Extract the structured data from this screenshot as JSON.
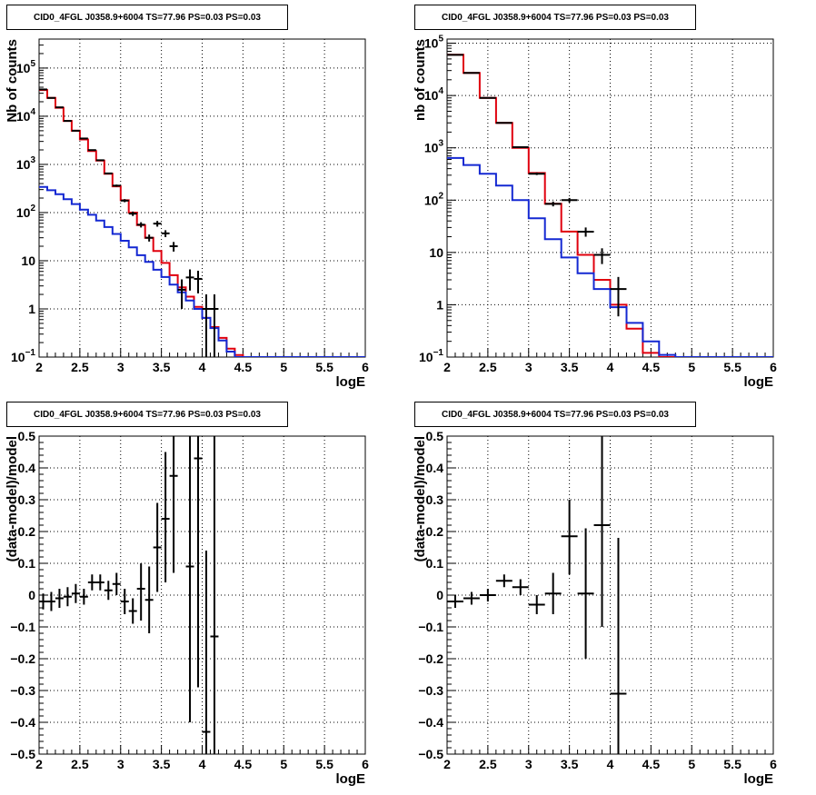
{
  "colors": {
    "data": "#000000",
    "total": "#e0000e",
    "component": "#1428d2",
    "grid": "#000000"
  },
  "chart_data": [
    {
      "type": "line",
      "title": "CID0_4FGL J0358.9+6004 TS=77.96 PS=0.03 PS=0.03",
      "xlabel": "logE",
      "ylabel": "Nb of counts",
      "ylog": true,
      "xlim": [
        2,
        6
      ],
      "ylim": [
        0.1,
        400000
      ],
      "grid": true,
      "x_ticks": [
        "2",
        "2.5",
        "3",
        "3.5",
        "4",
        "4.5",
        "5",
        "5.5",
        "6"
      ],
      "y_ticks": [
        {
          "v": 0.1,
          "base": "10",
          "exp": "−1"
        },
        {
          "v": 1,
          "base": "1",
          "exp": ""
        },
        {
          "v": 10,
          "base": "10",
          "exp": ""
        },
        {
          "v": 100,
          "base": "10",
          "exp": "2"
        },
        {
          "v": 1000,
          "base": "10",
          "exp": "3"
        },
        {
          "v": 10000,
          "base": "10",
          "exp": "4"
        },
        {
          "v": 100000,
          "base": "10",
          "exp": "5"
        }
      ],
      "series": [
        {
          "role": "total",
          "style": "step",
          "bin_start": 2.0,
          "bin_width": 0.1,
          "values": [
            35000,
            24000,
            15000,
            8000,
            5000,
            3300,
            1900,
            1200,
            640,
            350,
            180,
            100,
            55,
            30,
            16,
            9,
            5,
            2.8,
            1.8,
            1.1,
            0.65,
            0.42,
            0.25,
            0.15,
            0.11,
            0.1,
            0.1,
            0.1,
            0.1,
            0.1,
            0.1,
            0.1,
            0.1,
            0.1,
            0.1,
            0.1,
            0.1,
            0.1,
            0.1,
            0.1
          ]
        },
        {
          "role": "component",
          "style": "step",
          "bin_start": 2.0,
          "bin_width": 0.1,
          "values": [
            340,
            290,
            240,
            190,
            150,
            115,
            90,
            68,
            50,
            36,
            26,
            19,
            13,
            9.5,
            6.5,
            4.6,
            3.2,
            2.2,
            1.5,
            1.0,
            0.65,
            0.4,
            0.22,
            0.13,
            0.1,
            0.1,
            0.1,
            0.1,
            0.1,
            0.1,
            0.1,
            0.1,
            0.1,
            0.1,
            0.1,
            0.1,
            0.1,
            0.1,
            0.1,
            0.1
          ]
        },
        {
          "role": "data",
          "style": "points",
          "points": [
            {
              "x": 2.05,
              "y": 36000,
              "lo": 35800,
              "hi": 36200
            },
            {
              "x": 2.15,
              "y": 24000,
              "lo": 23850,
              "hi": 24150
            },
            {
              "x": 2.25,
              "y": 15300,
              "lo": 15180,
              "hi": 15420
            },
            {
              "x": 2.35,
              "y": 8000,
              "lo": 7910,
              "hi": 8090
            },
            {
              "x": 2.45,
              "y": 5000,
              "lo": 4930,
              "hi": 5070
            },
            {
              "x": 2.55,
              "y": 3450,
              "lo": 3390,
              "hi": 3510
            },
            {
              "x": 2.65,
              "y": 1980,
              "lo": 1935,
              "hi": 2025
            },
            {
              "x": 2.75,
              "y": 1220,
              "lo": 1185,
              "hi": 1255
            },
            {
              "x": 2.85,
              "y": 650,
              "lo": 625,
              "hi": 675
            },
            {
              "x": 2.95,
              "y": 362,
              "lo": 343,
              "hi": 381
            },
            {
              "x": 3.05,
              "y": 177,
              "lo": 164,
              "hi": 190
            },
            {
              "x": 3.15,
              "y": 95,
              "lo": 85,
              "hi": 105
            },
            {
              "x": 3.25,
              "y": 56,
              "lo": 49,
              "hi": 63
            },
            {
              "x": 3.35,
              "y": 30,
              "lo": 25,
              "hi": 35
            },
            {
              "x": 3.45,
              "y": 59,
              "lo": 51,
              "hi": 67
            },
            {
              "x": 3.55,
              "y": 37,
              "lo": 31,
              "hi": 43
            },
            {
              "x": 3.65,
              "y": 20,
              "lo": 15.5,
              "hi": 24.5
            },
            {
              "x": 3.75,
              "y": 2.5,
              "lo": 1,
              "hi": 4.1
            },
            {
              "x": 3.85,
              "y": 4.5,
              "lo": 2.4,
              "hi": 6.6
            },
            {
              "x": 3.95,
              "y": 4.2,
              "lo": 2.1,
              "hi": 6.2
            },
            {
              "x": 4.05,
              "y": 1.0,
              "lo": 0.1,
              "hi": 2.0
            },
            {
              "x": 4.15,
              "y": 1.0,
              "lo": 0.1,
              "hi": 2.0
            }
          ]
        }
      ]
    },
    {
      "type": "line",
      "title": "CID0_4FGL J0358.9+6004 TS=77.96 PS=0.03 PS=0.03",
      "xlabel": "logE",
      "ylabel": "nb of counts",
      "ylog": true,
      "xlim": [
        2,
        6
      ],
      "ylim": [
        0.1,
        120000
      ],
      "grid": true,
      "x_ticks": [
        "2",
        "2.5",
        "3",
        "3.5",
        "4",
        "4.5",
        "5",
        "5.5",
        "6"
      ],
      "y_ticks": [
        {
          "v": 0.1,
          "base": "10",
          "exp": "−1"
        },
        {
          "v": 1,
          "base": "1",
          "exp": ""
        },
        {
          "v": 10,
          "base": "10",
          "exp": ""
        },
        {
          "v": 100,
          "base": "10",
          "exp": "2"
        },
        {
          "v": 1000,
          "base": "10",
          "exp": "3"
        },
        {
          "v": 10000,
          "base": "10",
          "exp": "4"
        },
        {
          "v": 100000,
          "base": "10",
          "exp": "5"
        }
      ],
      "series": [
        {
          "role": "total",
          "style": "step",
          "bin_start": 2.0,
          "bin_width": 0.2,
          "values": [
            60000,
            27000,
            9000,
            3000,
            1000,
            330,
            85,
            25,
            9,
            3,
            1,
            0.35,
            0.12,
            0.1,
            0.1,
            0.1,
            0.1,
            0.1,
            0.1,
            0.1
          ]
        },
        {
          "role": "component",
          "style": "step",
          "bin_start": 2.0,
          "bin_width": 0.2,
          "values": [
            640,
            470,
            320,
            190,
            100,
            45,
            18,
            8,
            4,
            2,
            0.9,
            0.45,
            0.2,
            0.11,
            0.1,
            0.1,
            0.1,
            0.1,
            0.1,
            0.1
          ]
        },
        {
          "role": "data",
          "style": "points",
          "points": [
            {
              "x": 2.1,
              "y": 60000,
              "lo": 59750,
              "hi": 60250
            },
            {
              "x": 2.3,
              "y": 27000,
              "lo": 26830,
              "hi": 27170
            },
            {
              "x": 2.5,
              "y": 9000,
              "lo": 8900,
              "hi": 9100
            },
            {
              "x": 2.7,
              "y": 3000,
              "lo": 2945,
              "hi": 3055
            },
            {
              "x": 2.9,
              "y": 1030,
              "lo": 998,
              "hi": 1062
            },
            {
              "x": 3.1,
              "y": 320,
              "lo": 302,
              "hi": 338
            },
            {
              "x": 3.3,
              "y": 85,
              "lo": 76,
              "hi": 94
            },
            {
              "x": 3.5,
              "y": 100,
              "lo": 90,
              "hi": 110
            },
            {
              "x": 3.7,
              "y": 25,
              "lo": 20,
              "hi": 30
            },
            {
              "x": 3.9,
              "y": 9,
              "lo": 6,
              "hi": 12
            },
            {
              "x": 4.1,
              "y": 2,
              "lo": 0.6,
              "hi": 3.4
            }
          ]
        }
      ]
    },
    {
      "type": "scatter",
      "title": "CID0_4FGL J0358.9+6004 TS=77.96 PS=0.03 PS=0.03",
      "xlabel": "logE",
      "ylabel": "(data-model)/model",
      "ylog": false,
      "xlim": [
        2,
        6
      ],
      "ylim": [
        -0.5,
        0.5
      ],
      "grid": true,
      "x_ticks": [
        "2",
        "2.5",
        "3",
        "3.5",
        "4",
        "4.5",
        "5",
        "5.5",
        "6"
      ],
      "y_ticks": [
        "−0.5",
        "−0.4",
        "−0.3",
        "−0.2",
        "−0.1",
        "0",
        "0.1",
        "0.2",
        "0.3",
        "0.4",
        "0.5"
      ],
      "series": [
        {
          "role": "data",
          "style": "points",
          "half_width": 0.05,
          "points": [
            {
              "x": 2.05,
              "y": -0.02,
              "lo": -0.045,
              "hi": 0.005
            },
            {
              "x": 2.15,
              "y": -0.02,
              "lo": -0.05,
              "hi": 0.01
            },
            {
              "x": 2.25,
              "y": -0.01,
              "lo": -0.04,
              "hi": 0.02
            },
            {
              "x": 2.35,
              "y": -0.005,
              "lo": -0.035,
              "hi": 0.025
            },
            {
              "x": 2.45,
              "y": 0.005,
              "lo": -0.025,
              "hi": 0.035
            },
            {
              "x": 2.55,
              "y": -0.005,
              "lo": -0.03,
              "hi": 0.02
            },
            {
              "x": 2.65,
              "y": 0.04,
              "lo": 0.015,
              "hi": 0.065
            },
            {
              "x": 2.75,
              "y": 0.04,
              "lo": 0.015,
              "hi": 0.065
            },
            {
              "x": 2.85,
              "y": 0.015,
              "lo": -0.015,
              "hi": 0.045
            },
            {
              "x": 2.95,
              "y": 0.035,
              "lo": 0.0,
              "hi": 0.07
            },
            {
              "x": 3.05,
              "y": -0.02,
              "lo": -0.06,
              "hi": 0.02
            },
            {
              "x": 3.15,
              "y": -0.05,
              "lo": -0.09,
              "hi": -0.01
            },
            {
              "x": 3.25,
              "y": 0.02,
              "lo": -0.08,
              "hi": 0.1
            },
            {
              "x": 3.35,
              "y": -0.015,
              "lo": -0.12,
              "hi": 0.09
            },
            {
              "x": 3.45,
              "y": 0.15,
              "lo": 0.01,
              "hi": 0.29
            },
            {
              "x": 3.55,
              "y": 0.24,
              "lo": 0.04,
              "hi": 0.45
            },
            {
              "x": 3.65,
              "y": 0.375,
              "lo": 0.07,
              "hi": 0.5
            },
            {
              "x": 3.85,
              "y": 0.09,
              "lo": -0.4,
              "hi": 0.5
            },
            {
              "x": 3.95,
              "y": 0.43,
              "lo": -0.29,
              "hi": 0.5
            },
            {
              "x": 4.05,
              "y": -0.43,
              "lo": -0.5,
              "hi": 0.14
            },
            {
              "x": 4.15,
              "y": -0.13,
              "lo": -0.5,
              "hi": 0.5
            }
          ]
        }
      ]
    },
    {
      "type": "scatter",
      "title": "CID0_4FGL J0358.9+6004 TS=77.96 PS=0.03 PS=0.03",
      "xlabel": "logE",
      "ylabel": "(data-model)/model",
      "ylog": false,
      "xlim": [
        2,
        6
      ],
      "ylim": [
        -0.5,
        0.5
      ],
      "grid": true,
      "x_ticks": [
        "2",
        "2.5",
        "3",
        "3.5",
        "4",
        "4.5",
        "5",
        "5.5",
        "6"
      ],
      "y_ticks": [
        "−0.5",
        "−0.4",
        "−0.3",
        "−0.2",
        "−0.1",
        "0",
        "0.1",
        "0.2",
        "0.3",
        "0.4",
        "0.5"
      ],
      "series": [
        {
          "role": "data",
          "style": "points",
          "half_width": 0.1,
          "points": [
            {
              "x": 2.1,
              "y": -0.02,
              "lo": -0.04,
              "hi": 0.0
            },
            {
              "x": 2.3,
              "y": -0.01,
              "lo": -0.03,
              "hi": 0.01
            },
            {
              "x": 2.5,
              "y": 0.0,
              "lo": -0.02,
              "hi": 0.02
            },
            {
              "x": 2.7,
              "y": 0.045,
              "lo": 0.025,
              "hi": 0.065
            },
            {
              "x": 2.9,
              "y": 0.025,
              "lo": 0.0,
              "hi": 0.05
            },
            {
              "x": 3.1,
              "y": -0.03,
              "lo": -0.06,
              "hi": 0.0
            },
            {
              "x": 3.3,
              "y": 0.005,
              "lo": -0.06,
              "hi": 0.07
            },
            {
              "x": 3.5,
              "y": 0.185,
              "lo": 0.065,
              "hi": 0.3
            },
            {
              "x": 3.7,
              "y": 0.005,
              "lo": -0.2,
              "hi": 0.21
            },
            {
              "x": 3.9,
              "y": 0.22,
              "lo": -0.1,
              "hi": 0.5
            },
            {
              "x": 4.1,
              "y": -0.31,
              "lo": -0.5,
              "hi": 0.18
            }
          ]
        }
      ]
    }
  ]
}
